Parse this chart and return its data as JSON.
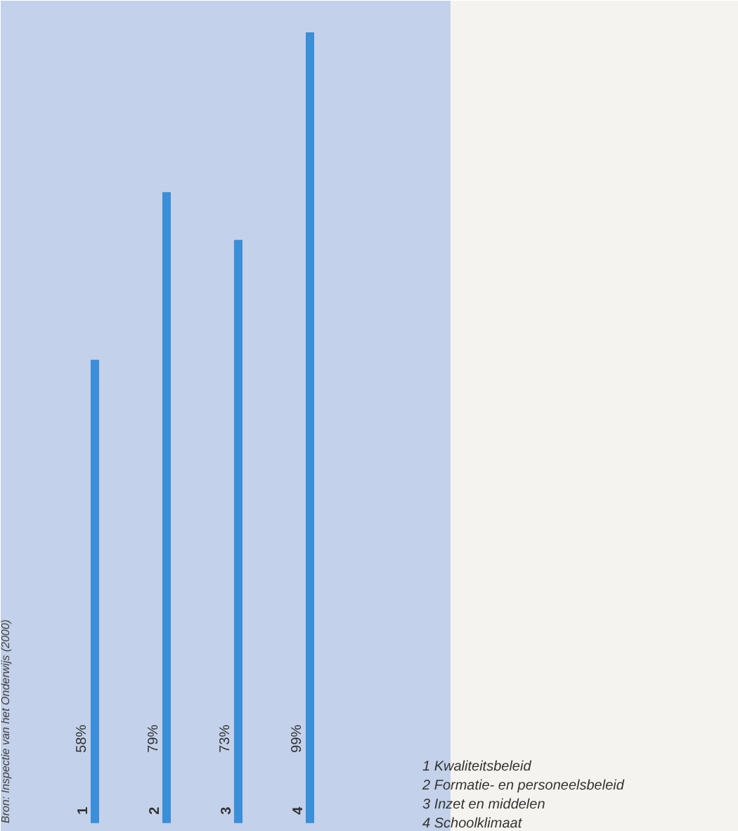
{
  "chart_data": {
    "type": "bar",
    "categories": [
      "1",
      "2",
      "3",
      "4"
    ],
    "values": [
      58,
      79,
      73,
      99
    ],
    "value_labels": [
      "58%",
      "79%",
      "73%",
      "99%"
    ],
    "color": "#3a8fd8",
    "annotations": [
      "Bron: Inspectie van het Onderwijs (2000)",
      "1   Kwaliteitsbeleid",
      "2   Formatie- en personeelsbeleid",
      "3   Inzet en middelen",
      "4   Schoolklimaat"
    ]
  }
}
